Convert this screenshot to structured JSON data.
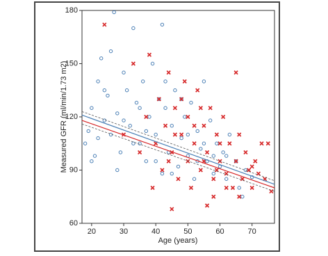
{
  "chart_data": {
    "type": "scatter",
    "xlabel": "Age (years)",
    "ylabel": "Measured GFR (ml/min/1.73 m2)",
    "xlim": [
      17,
      77
    ],
    "ylim": [
      60,
      180
    ],
    "xticks": [
      20,
      30,
      40,
      50,
      60,
      70
    ],
    "yticks": [
      60,
      90,
      120,
      150,
      180
    ],
    "series": [
      {
        "color": "#4a7fb5",
        "marker": "circle",
        "x": [
          18,
          19,
          20,
          21,
          22,
          23,
          24,
          25,
          26,
          26,
          27,
          28,
          29,
          30,
          31,
          32,
          33,
          34,
          35,
          36,
          37,
          38,
          39,
          40,
          41,
          42,
          42,
          43,
          44,
          45,
          46,
          47,
          48,
          49,
          50,
          51,
          52,
          53,
          54,
          55,
          56,
          57,
          58,
          59,
          60,
          61,
          62,
          63,
          65,
          66,
          68,
          70,
          20,
          22,
          24,
          28,
          30,
          33,
          35,
          37,
          40,
          43,
          45,
          48,
          50,
          53,
          55,
          58,
          62,
          67
        ],
        "values": [
          105,
          112,
          125,
          98,
          140,
          153,
          118,
          132,
          157,
          110,
          179,
          122,
          100,
          145,
          135,
          115,
          170,
          128,
          105,
          140,
          95,
          120,
          150,
          110,
          130,
          172,
          88,
          125,
          100,
          115,
          135,
          92,
          108,
          120,
          98,
          128,
          85,
          112,
          102,
          140,
          95,
          118,
          88,
          105,
          92,
          100,
          85,
          110,
          95,
          80,
          90,
          86,
          95,
          108,
          135,
          90,
          118,
          105,
          125,
          112,
          95,
          140,
          88,
          130,
          110,
          95,
          105,
          98,
          98,
          75
        ]
      },
      {
        "color": "#d62728",
        "marker": "cross",
        "x": [
          24,
          30,
          33,
          35,
          37,
          38,
          40,
          41,
          42,
          43,
          44,
          45,
          46,
          47,
          48,
          49,
          50,
          50,
          51,
          52,
          53,
          54,
          55,
          56,
          56,
          57,
          58,
          59,
          60,
          61,
          62,
          63,
          64,
          65,
          65,
          66,
          67,
          68,
          69,
          70,
          71,
          72,
          73,
          74,
          75,
          76,
          45,
          48,
          52,
          55,
          58,
          60,
          62,
          66,
          70,
          39,
          44,
          46,
          54,
          59
        ],
        "values": [
          172,
          110,
          150,
          100,
          120,
          155,
          105,
          130,
          90,
          115,
          145,
          100,
          125,
          85,
          110,
          140,
          95,
          120,
          80,
          105,
          135,
          90,
          115,
          70,
          100,
          125,
          85,
          110,
          95,
          120,
          88,
          105,
          80,
          145,
          95,
          110,
          85,
          100,
          90,
          80,
          95,
          88,
          105,
          85,
          105,
          78,
          68,
          130,
          115,
          95,
          75,
          105,
          80,
          75,
          92,
          80,
          95,
          110,
          125,
          90
        ]
      }
    ],
    "lines": [
      {
        "color": "#4a7fb5",
        "dash": false,
        "x": [
          17,
          77
        ],
        "values": [
          121,
          82
        ]
      },
      {
        "color": "#d62728",
        "dash": false,
        "x": [
          17,
          77
        ],
        "values": [
          118,
          80
        ]
      },
      {
        "color": "#555555",
        "dash": true,
        "x": [
          17,
          77
        ],
        "values": [
          123,
          84
        ]
      },
      {
        "color": "#555555",
        "dash": true,
        "x": [
          17,
          77
        ],
        "values": [
          116,
          78
        ]
      }
    ]
  }
}
